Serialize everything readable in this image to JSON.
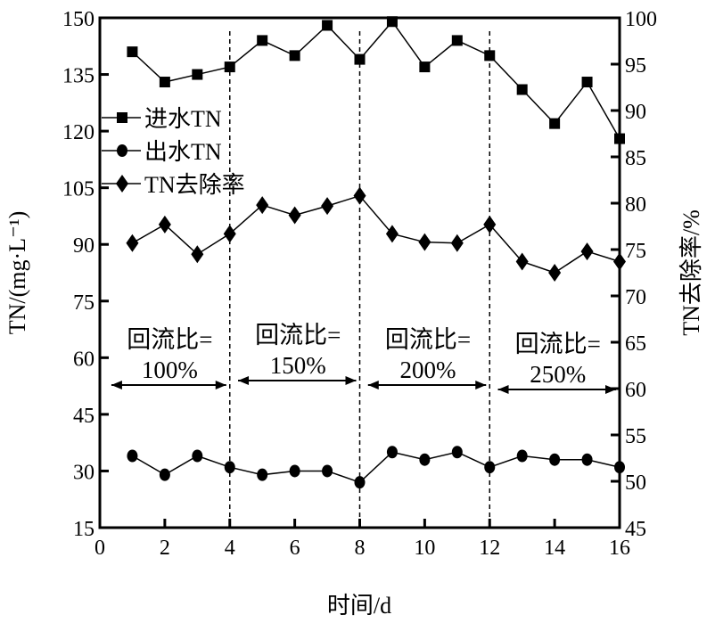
{
  "chart_data": {
    "type": "line",
    "title": "",
    "xlabel": "时间/d",
    "ylabel": "TN/(mg·L⁻¹)",
    "ylabel_right": "TN去除率/%",
    "xlim": [
      0,
      16
    ],
    "ylim": [
      15,
      150
    ],
    "ylim_right": [
      45,
      100
    ],
    "x_ticks": [
      "0",
      "2",
      "4",
      "6",
      "8",
      "10",
      "12",
      "14",
      "16"
    ],
    "y_ticks": [
      "15",
      "30",
      "45",
      "60",
      "75",
      "90",
      "105",
      "120",
      "135",
      "150"
    ],
    "y_ticks_right": [
      "45",
      "50",
      "55",
      "60",
      "65",
      "70",
      "75",
      "80",
      "85",
      "90",
      "95",
      "100"
    ],
    "grid": false,
    "legend_position": "left",
    "x": [
      1,
      2,
      3,
      4,
      5,
      6,
      7,
      8,
      9,
      10,
      11,
      12,
      13,
      14,
      15,
      16
    ],
    "series": [
      {
        "name": "进水TN",
        "axis": "left",
        "marker": "square",
        "values": [
          141,
          133,
          135,
          137,
          144,
          140,
          148,
          139,
          149,
          137,
          144,
          140,
          131,
          122,
          133,
          118
        ]
      },
      {
        "name": "出水TN",
        "axis": "left",
        "marker": "circle",
        "values": [
          34,
          29,
          34,
          31,
          29,
          30,
          30,
          27,
          35,
          33,
          35,
          31,
          34,
          33,
          33,
          31
        ]
      },
      {
        "name": "TN去除率",
        "axis": "right",
        "marker": "diamond",
        "values": [
          75.7,
          77.7,
          74.5,
          76.7,
          79.8,
          78.7,
          79.7,
          80.8,
          76.7,
          75.8,
          75.7,
          77.7,
          73.7,
          72.5,
          74.8,
          73.7
        ]
      }
    ],
    "phase_dividers": [
      4,
      8,
      12
    ],
    "annotations": [
      {
        "line1": "回流比=",
        "line2": "100%",
        "from": 0.3,
        "to": 4
      },
      {
        "line1": "回流比=",
        "line2": "150%",
        "from": 4.2,
        "to": 8
      },
      {
        "line1": "回流比=",
        "line2": "200%",
        "from": 8.2,
        "to": 12
      },
      {
        "line1": "回流比=",
        "line2": "250%",
        "from": 12.2,
        "to": 16
      }
    ]
  }
}
